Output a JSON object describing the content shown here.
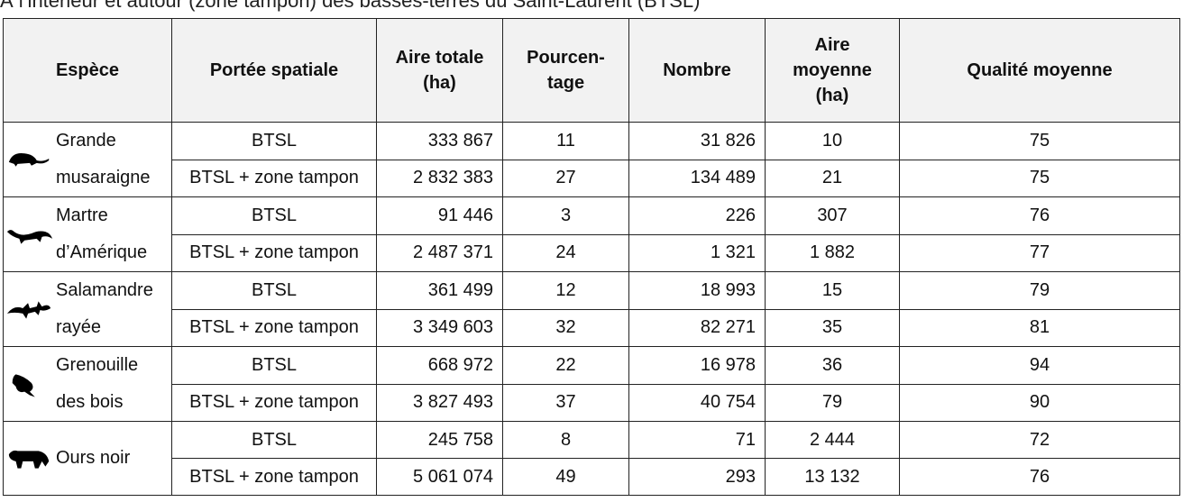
{
  "caption": "À l’intérieur et autour (zone tampon) des basses-terres du Saint-Laurent (BTSL)",
  "table": {
    "header": [
      "Espèce",
      "Portée spatiale",
      "Aire totale (ha)",
      "Pourcen-tage",
      "Nombre",
      "Aire moyenne (ha)",
      "Qualité moyenne"
    ],
    "groups": [
      {
        "species": "Grande musaraigne",
        "rows": [
          [
            "BTSL",
            "333 867",
            "11",
            "31 826",
            "10",
            "75"
          ],
          [
            "BTSL + zone tampon",
            "2 832 383",
            "27",
            "134 489",
            "21",
            "75"
          ]
        ]
      },
      {
        "species": "Martre d’Amérique",
        "rows": [
          [
            "BTSL",
            "91 446",
            "3",
            "226",
            "307",
            "76"
          ],
          [
            "BTSL + zone tampon",
            "2 487 371",
            "24",
            "1 321",
            "1 882",
            "77"
          ]
        ]
      },
      {
        "species": "Salamandre rayée",
        "rows": [
          [
            "BTSL",
            "361 499",
            "12",
            "18 993",
            "15",
            "79"
          ],
          [
            "BTSL + zone tampon",
            "3 349 603",
            "32",
            "82 271",
            "35",
            "81"
          ]
        ]
      },
      {
        "species": "Grenouille des bois",
        "rows": [
          [
            "BTSL",
            "668 972",
            "22",
            "16 978",
            "36",
            "94"
          ],
          [
            "BTSL + zone tampon",
            "3 827 493",
            "37",
            "40 754",
            "79",
            "90"
          ]
        ]
      },
      {
        "species": "Ours noir",
        "rows": [
          [
            "BTSL",
            "245 758",
            "8",
            "71",
            "2 444",
            "72"
          ],
          [
            "BTSL + zone tampon",
            "5 061 074",
            "49",
            "293",
            "13 132",
            "76"
          ]
        ]
      }
    ]
  }
}
